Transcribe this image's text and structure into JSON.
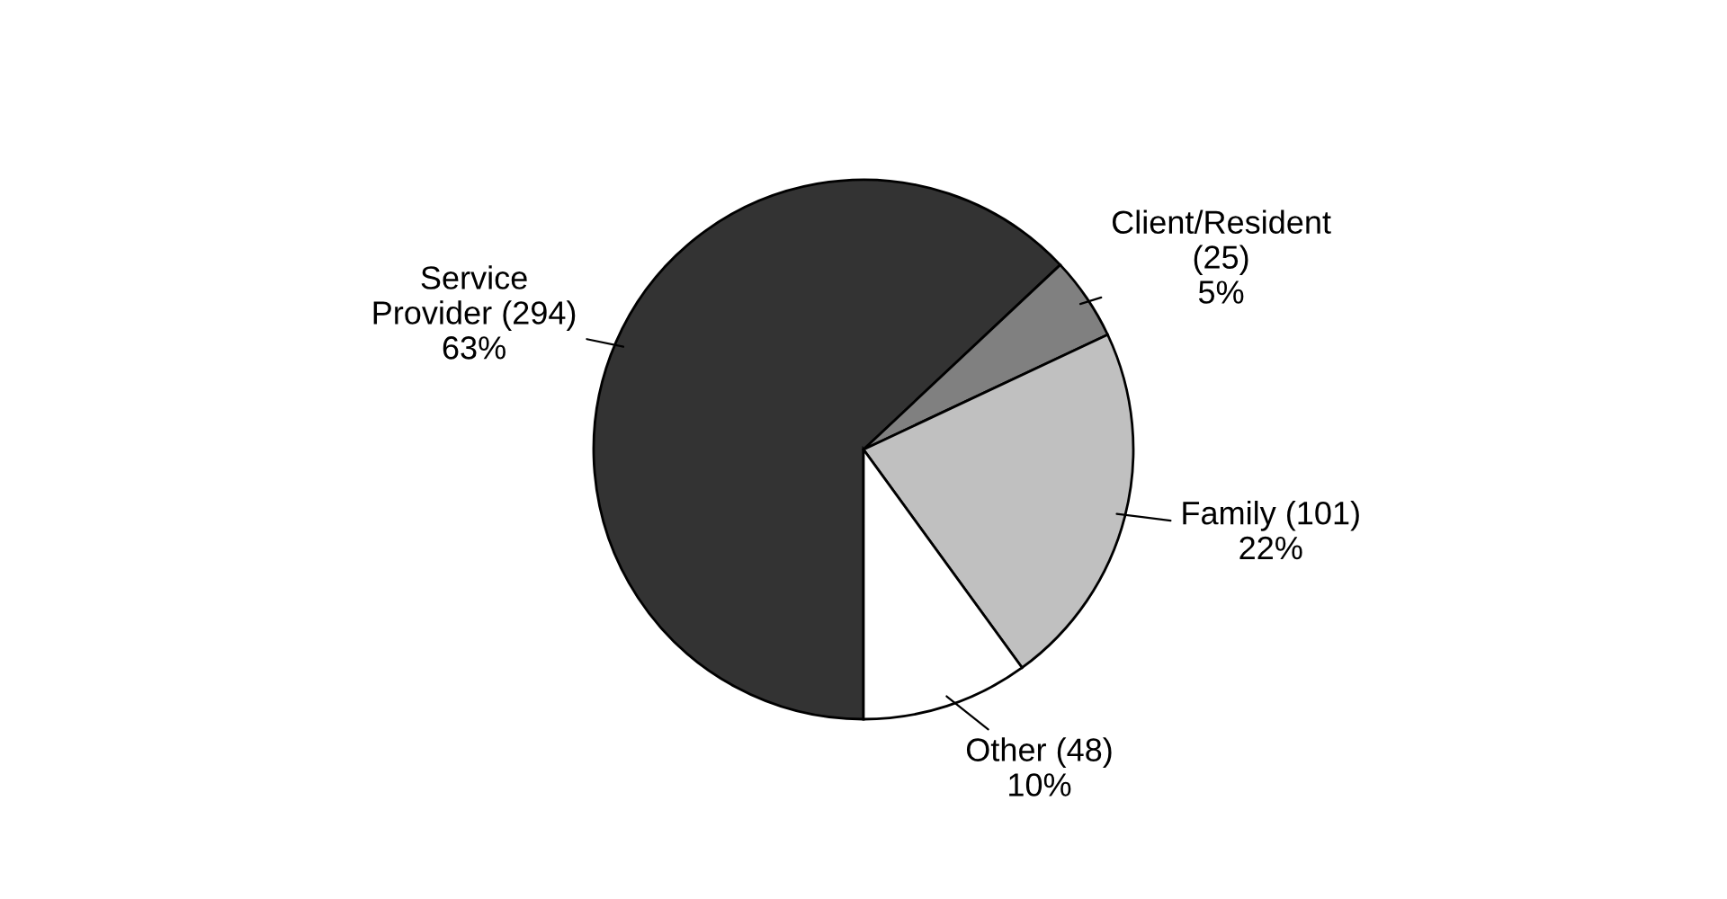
{
  "chart_data": {
    "type": "pie",
    "categories": [
      "Service\nProvider (294)",
      "Client/Resident\n(25)",
      "Family (101)",
      "Other (48)"
    ],
    "values": [
      63,
      5,
      22,
      10
    ],
    "value_labels": [
      "63%",
      "5%",
      "22%",
      "10%"
    ],
    "colors": [
      "#333333",
      "#808080",
      "#c0c0c0",
      "#ffffff"
    ]
  }
}
